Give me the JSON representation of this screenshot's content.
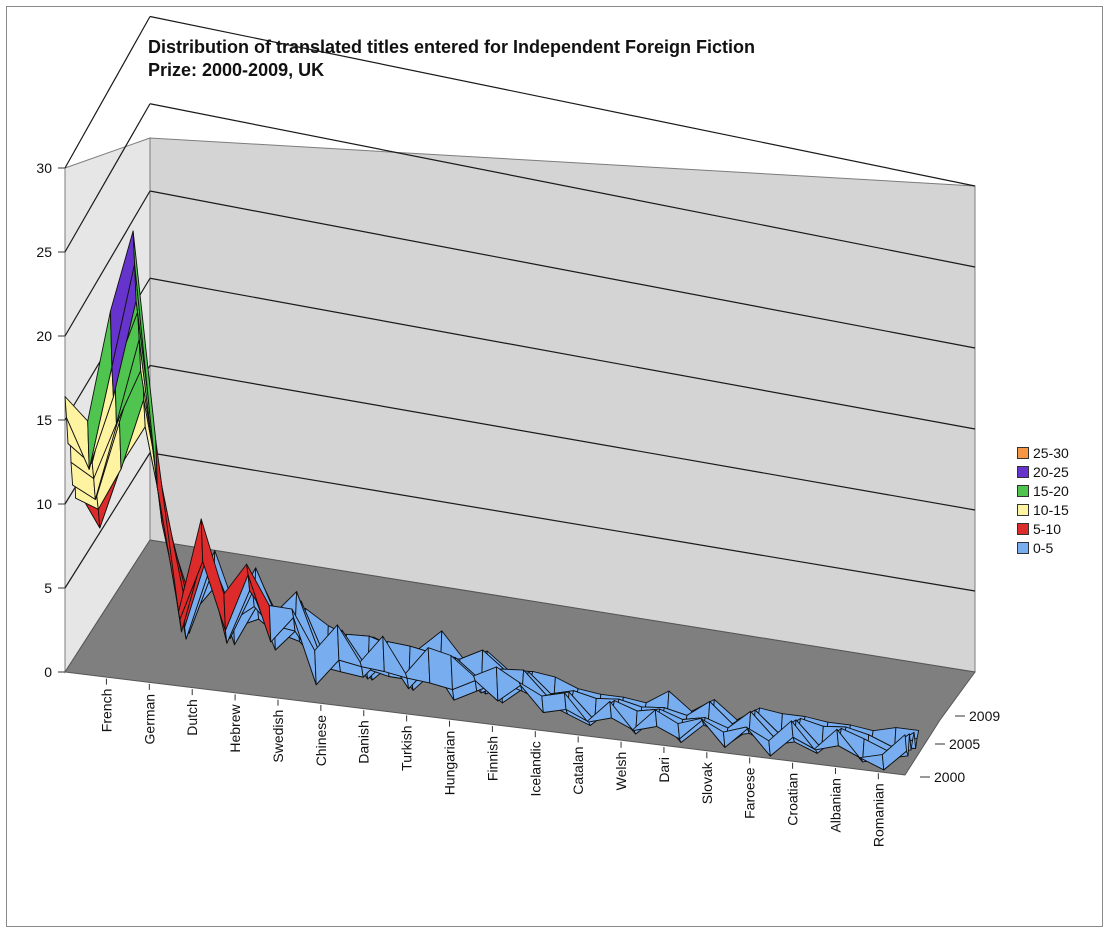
{
  "chart_data": {
    "type": "surface",
    "title_line1": "Distribution of translated titles entered for Independent Foreign Fiction",
    "title_line2": "Prize: 2000-2009, UK",
    "zlim": [
      0,
      30
    ],
    "z_ticks": [
      "0",
      "5",
      "10",
      "15",
      "20",
      "25",
      "30"
    ],
    "year_ticks": [
      "2000",
      "2005",
      "2009"
    ],
    "language_labels": [
      "French",
      "German",
      "Dutch",
      "Hebrew",
      "Swedish",
      "Chinese",
      "Danish",
      "Turkish",
      "Hungarian",
      "Finnish",
      "Icelandic",
      "Catalan",
      "Welsh",
      "Dari",
      "Slovak",
      "Faroese",
      "Croatian",
      "Albanian",
      "Romanian"
    ],
    "legend_placement": "right",
    "bands": [
      {
        "label": "25-30",
        "color": "#f79646"
      },
      {
        "label": "20-25",
        "color": "#6633cc"
      },
      {
        "label": "15-20",
        "color": "#4fc44f"
      },
      {
        "label": "10-15",
        "color": "#fdf3a0"
      },
      {
        "label": "5-10",
        "color": "#dd2a2a"
      },
      {
        "label": "0-5",
        "color": "#78aef0"
      }
    ],
    "front_row_profile": [
      15,
      13,
      19,
      25,
      12,
      3,
      8,
      3,
      6,
      3,
      4,
      1,
      2,
      1,
      2,
      1,
      2,
      1,
      1,
      1,
      2,
      1,
      1,
      0,
      1,
      0,
      1,
      0,
      1,
      0,
      1,
      0,
      1,
      0,
      1,
      0,
      0,
      1
    ]
  }
}
